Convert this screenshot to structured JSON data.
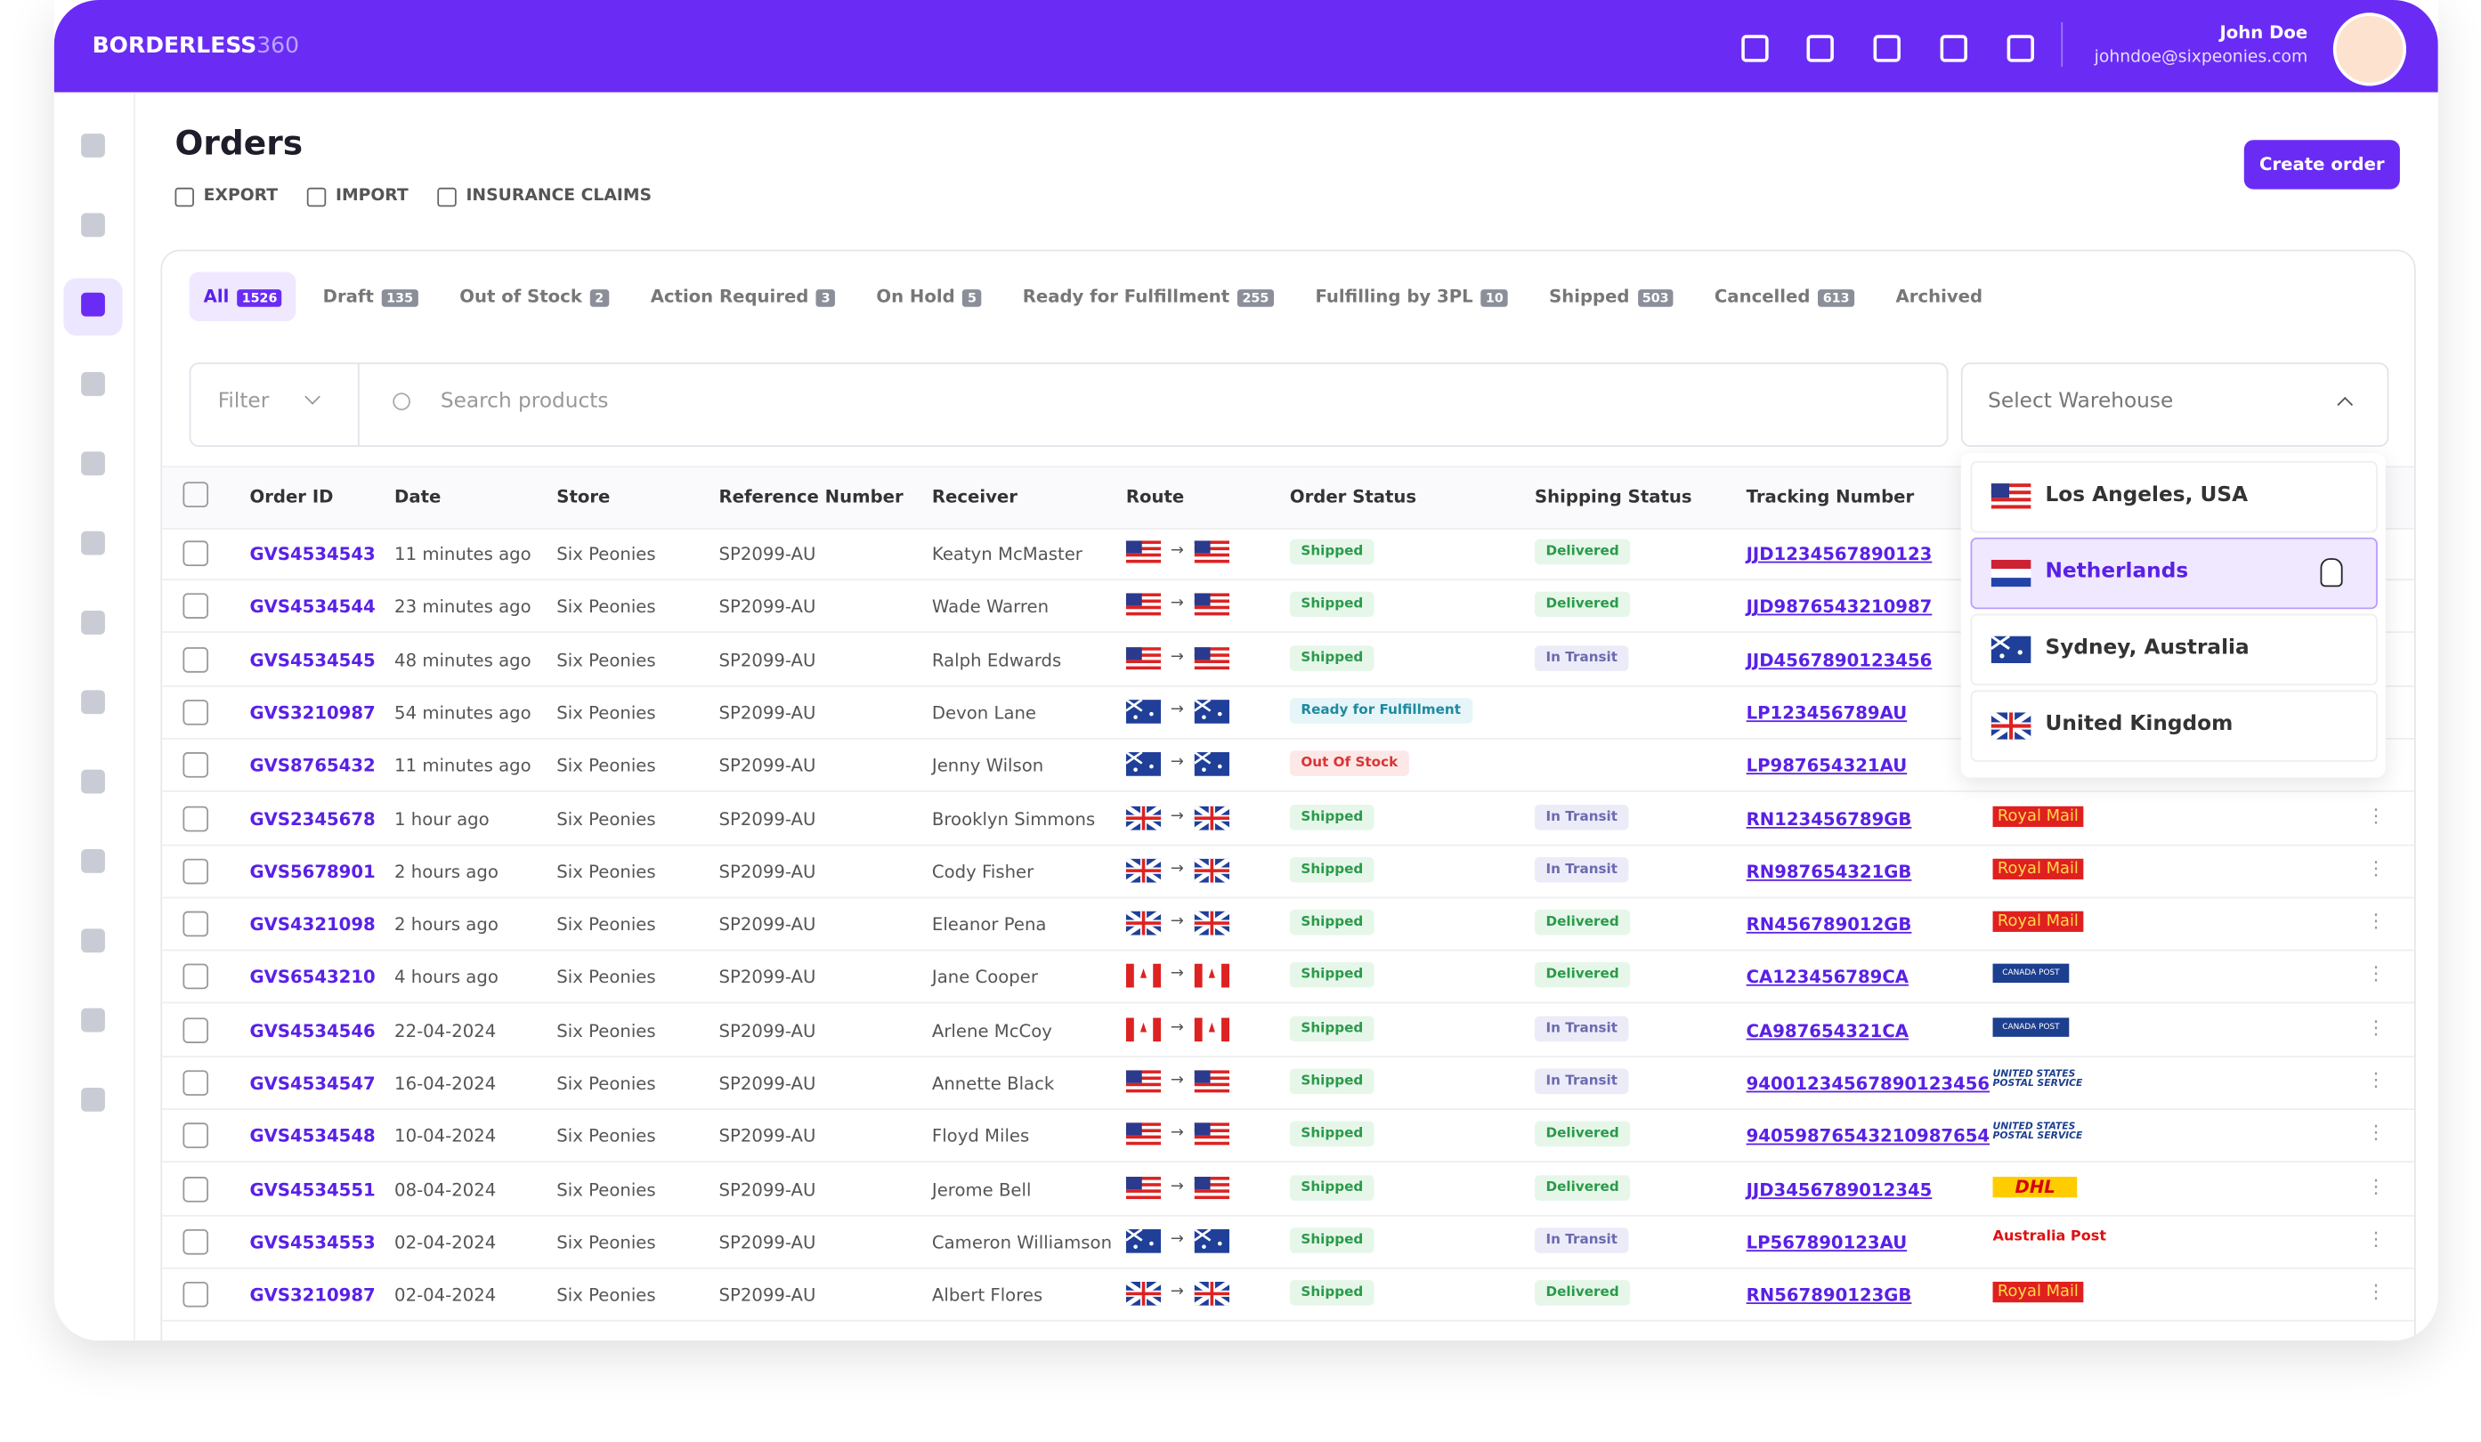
{
  "header": {
    "logo": "BORDERLESS",
    "logo_suffix": "360",
    "user_name": "John Doe",
    "user_email": "johndoe@sixpeonies.com"
  },
  "page": {
    "title": "Orders",
    "actions": [
      "EXPORT",
      "IMPORT",
      "INSURANCE CLAIMS"
    ],
    "create_button": "Create order"
  },
  "tabs": [
    {
      "label": "All",
      "count": "1526"
    },
    {
      "label": "Draft",
      "count": "135"
    },
    {
      "label": "Out of Stock",
      "count": "2"
    },
    {
      "label": "Action Required",
      "count": "3"
    },
    {
      "label": "On Hold",
      "count": "5"
    },
    {
      "label": "Ready for Fulfillment",
      "count": "255"
    },
    {
      "label": "Fulfilling by 3PL",
      "count": "10"
    },
    {
      "label": "Shipped",
      "count": "503"
    },
    {
      "label": "Cancelled",
      "count": "613"
    },
    {
      "label": "Archived",
      "count": null
    }
  ],
  "filters": {
    "filter": "Filter",
    "search_placeholder": "Search products",
    "warehouse": "Select Warehouse",
    "warehouse_options": [
      "Los Angeles, USA",
      "Netherlands",
      "Sydney, Australia",
      "United Kingdom"
    ]
  },
  "table": {
    "columns": [
      "Order ID",
      "Date",
      "Store",
      "Reference Number",
      "Receiver",
      "Route",
      "Order Status",
      "Shipping Status",
      "Tracking Number"
    ],
    "rows": [
      [
        "GVS4534543",
        "11 minutes ago",
        "Six Peonies",
        "SP2099-AU",
        "Keatyn McMaster",
        "Shipped",
        "Delivered",
        "JJD1234567890123",
        null
      ],
      [
        "GVS4534544",
        "23 minutes ago",
        "Six Peonies",
        "SP2099-AU",
        "Wade Warren",
        "Shipped",
        "Delivered",
        "JJD9876543210987",
        null
      ],
      [
        "GVS4534545",
        "48 minutes ago",
        "Six Peonies",
        "SP2099-AU",
        "Ralph Edwards",
        "Shipped",
        "In Transit",
        "JJD4567890123456",
        null
      ],
      [
        "GVS3210987",
        "54 minutes ago",
        "Six Peonies",
        "SP2099-AU",
        "Devon Lane",
        "Ready for Fulfillment",
        null,
        "LP123456789AU",
        null
      ],
      [
        "GVS8765432",
        "11 minutes ago",
        "Six Peonies",
        "SP2099-AU",
        "Jenny Wilson",
        "Out Of Stock",
        null,
        "LP987654321AU",
        null
      ],
      [
        "GVS2345678",
        "1 hour ago",
        "Six Peonies",
        "SP2099-AU",
        "Brooklyn Simmons",
        "Shipped",
        "In Transit",
        "RN123456789GB",
        "Royal Mail"
      ],
      [
        "GVS5678901",
        "2 hours ago",
        "Six Peonies",
        "SP2099-AU",
        "Cody Fisher",
        "Shipped",
        "In Transit",
        "RN987654321GB",
        "Royal Mail"
      ],
      [
        "GVS4321098",
        "2 hours ago",
        "Six Peonies",
        "SP2099-AU",
        "Eleanor Pena",
        "Shipped",
        "Delivered",
        "RN456789012GB",
        "Royal Mail"
      ],
      [
        "GVS6543210",
        "4 hours ago",
        "Six Peonies",
        "SP2099-AU",
        "Jane Cooper",
        "Shipped",
        "Delivered",
        "CA123456789CA",
        "CANADA POST"
      ],
      [
        "GVS4534546",
        "22-04-2024",
        "Six Peonies",
        "SP2099-AU",
        "Arlene McCoy",
        "Shipped",
        "In Transit",
        "CA987654321CA",
        "CANADA POST"
      ],
      [
        "GVS4534547",
        "16-04-2024",
        "Six Peonies",
        "SP2099-AU",
        "Annette Black",
        "Shipped",
        "In Transit",
        "94001234567890123456",
        "UNITED STATES POSTAL SERVICE"
      ],
      [
        "GVS4534548",
        "10-04-2024",
        "Six Peonies",
        "SP2099-AU",
        "Floyd Miles",
        "Shipped",
        "Delivered",
        "94059876543210987654",
        "UNITED STATES POSTAL SERVICE"
      ],
      [
        "GVS4534551",
        "08-04-2024",
        "Six Peonies",
        "SP2099-AU",
        "Jerome Bell",
        "Shipped",
        "Delivered",
        "JJD3456789012345",
        "DHL"
      ],
      [
        "GVS4534553",
        "02-04-2024",
        "Six Peonies",
        "SP2099-AU",
        "Cameron Williamson",
        "Shipped",
        "In Transit",
        "LP567890123AU",
        "Australia Post"
      ],
      [
        "GVS3210987",
        "02-04-2024",
        "Six Peonies",
        "SP2099-AU",
        "Albert Flores",
        "Shipped",
        "Delivered",
        "RN567890123GB",
        "Royal Mail"
      ]
    ]
  }
}
